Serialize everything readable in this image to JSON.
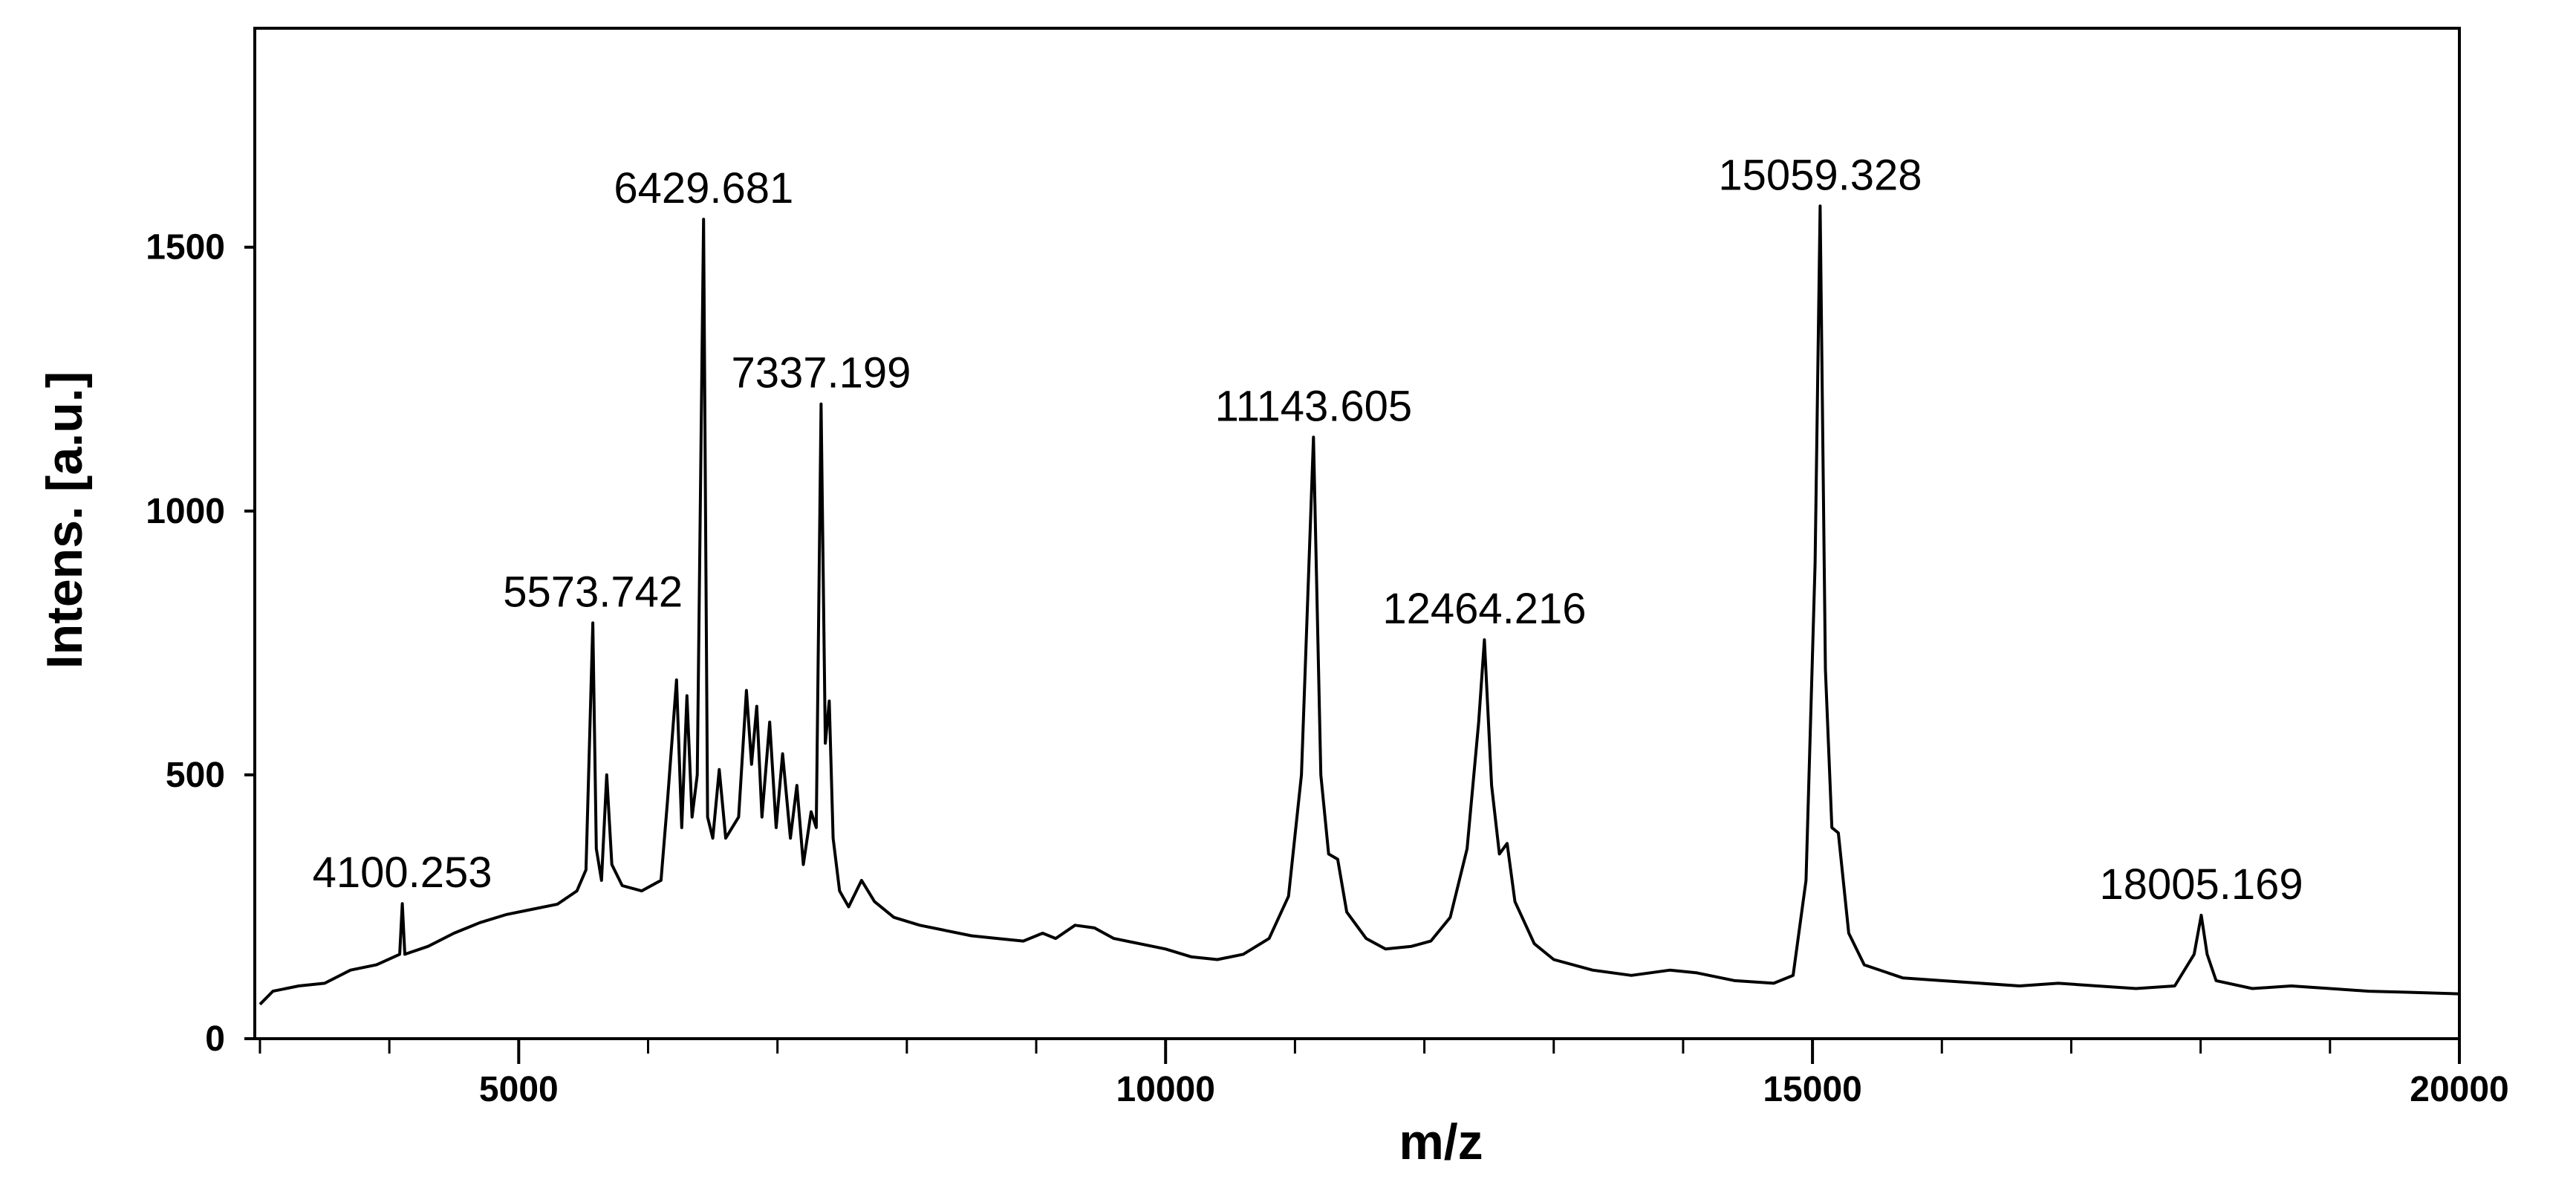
{
  "chart_data": {
    "type": "line",
    "xlabel": "m/z",
    "ylabel": "Intens. [a.u.]",
    "color": "#000000",
    "xlim": [
      2960,
      20000
    ],
    "xticks": [
      5000,
      10000,
      15000,
      20000
    ],
    "xminor_ticks": [
      3000,
      4000,
      6000,
      7000,
      8000,
      9000,
      11000,
      12000,
      13000,
      14000,
      16000,
      17000,
      18000,
      19000
    ],
    "ylim": [
      0,
      1915
    ],
    "yticks": [
      0,
      500,
      1000,
      1500
    ],
    "x": [
      3000,
      3100,
      3300,
      3500,
      3700,
      3900,
      4080,
      4100,
      4120,
      4300,
      4500,
      4700,
      4900,
      5100,
      5300,
      5450,
      5520,
      5573,
      5600,
      5640,
      5680,
      5720,
      5800,
      5950,
      6100,
      6150,
      6220,
      6260,
      6300,
      6340,
      6380,
      6429,
      6460,
      6500,
      6550,
      6600,
      6700,
      6760,
      6800,
      6840,
      6880,
      6940,
      6990,
      7040,
      7100,
      7150,
      7200,
      7260,
      7300,
      7337,
      7370,
      7400,
      7430,
      7480,
      7550,
      7650,
      7750,
      7900,
      8100,
      8300,
      8500,
      8700,
      8900,
      9050,
      9150,
      9300,
      9450,
      9600,
      9800,
      10000,
      10200,
      10400,
      10600,
      10800,
      10950,
      11050,
      11143,
      11200,
      11260,
      11330,
      11400,
      11550,
      11700,
      11900,
      12050,
      12200,
      12330,
      12420,
      12464,
      12520,
      12580,
      12640,
      12700,
      12850,
      13000,
      13300,
      13600,
      13900,
      14100,
      14400,
      14700,
      14850,
      14950,
      15020,
      15059,
      15100,
      15150,
      15200,
      15280,
      15400,
      15700,
      16000,
      16300,
      16600,
      16900,
      17200,
      17500,
      17800,
      17950,
      18005,
      18050,
      18120,
      18400,
      18700,
      19000,
      19300,
      19600,
      20000
    ],
    "values": [
      65,
      90,
      100,
      105,
      130,
      140,
      160,
      256,
      160,
      175,
      200,
      220,
      235,
      245,
      255,
      280,
      320,
      788,
      360,
      300,
      500,
      330,
      290,
      280,
      300,
      450,
      680,
      400,
      650,
      420,
      500,
      1553,
      420,
      380,
      510,
      380,
      420,
      660,
      520,
      630,
      420,
      600,
      400,
      540,
      380,
      480,
      330,
      430,
      400,
      1203,
      560,
      640,
      380,
      280,
      250,
      300,
      260,
      230,
      215,
      205,
      195,
      190,
      185,
      200,
      190,
      215,
      210,
      190,
      180,
      170,
      155,
      150,
      160,
      190,
      270,
      500,
      1140,
      500,
      350,
      340,
      240,
      190,
      170,
      175,
      185,
      230,
      360,
      600,
      756,
      480,
      350,
      370,
      260,
      180,
      150,
      130,
      120,
      130,
      125,
      110,
      105,
      120,
      300,
      900,
      1578,
      700,
      400,
      390,
      200,
      140,
      115,
      110,
      105,
      100,
      105,
      100,
      95,
      100,
      160,
      234,
      160,
      110,
      95,
      100,
      95,
      90,
      88,
      85
    ],
    "annotations": [
      {
        "x": 4100.253,
        "y": 256
      },
      {
        "x": 5573.742,
        "y": 788
      },
      {
        "x": 6429.681,
        "y": 1553
      },
      {
        "x": 7337.199,
        "y": 1203
      },
      {
        "x": 11143.605,
        "y": 1140
      },
      {
        "x": 12464.216,
        "y": 756
      },
      {
        "x": 15059.328,
        "y": 1578
      },
      {
        "x": 18005.169,
        "y": 234
      }
    ]
  }
}
